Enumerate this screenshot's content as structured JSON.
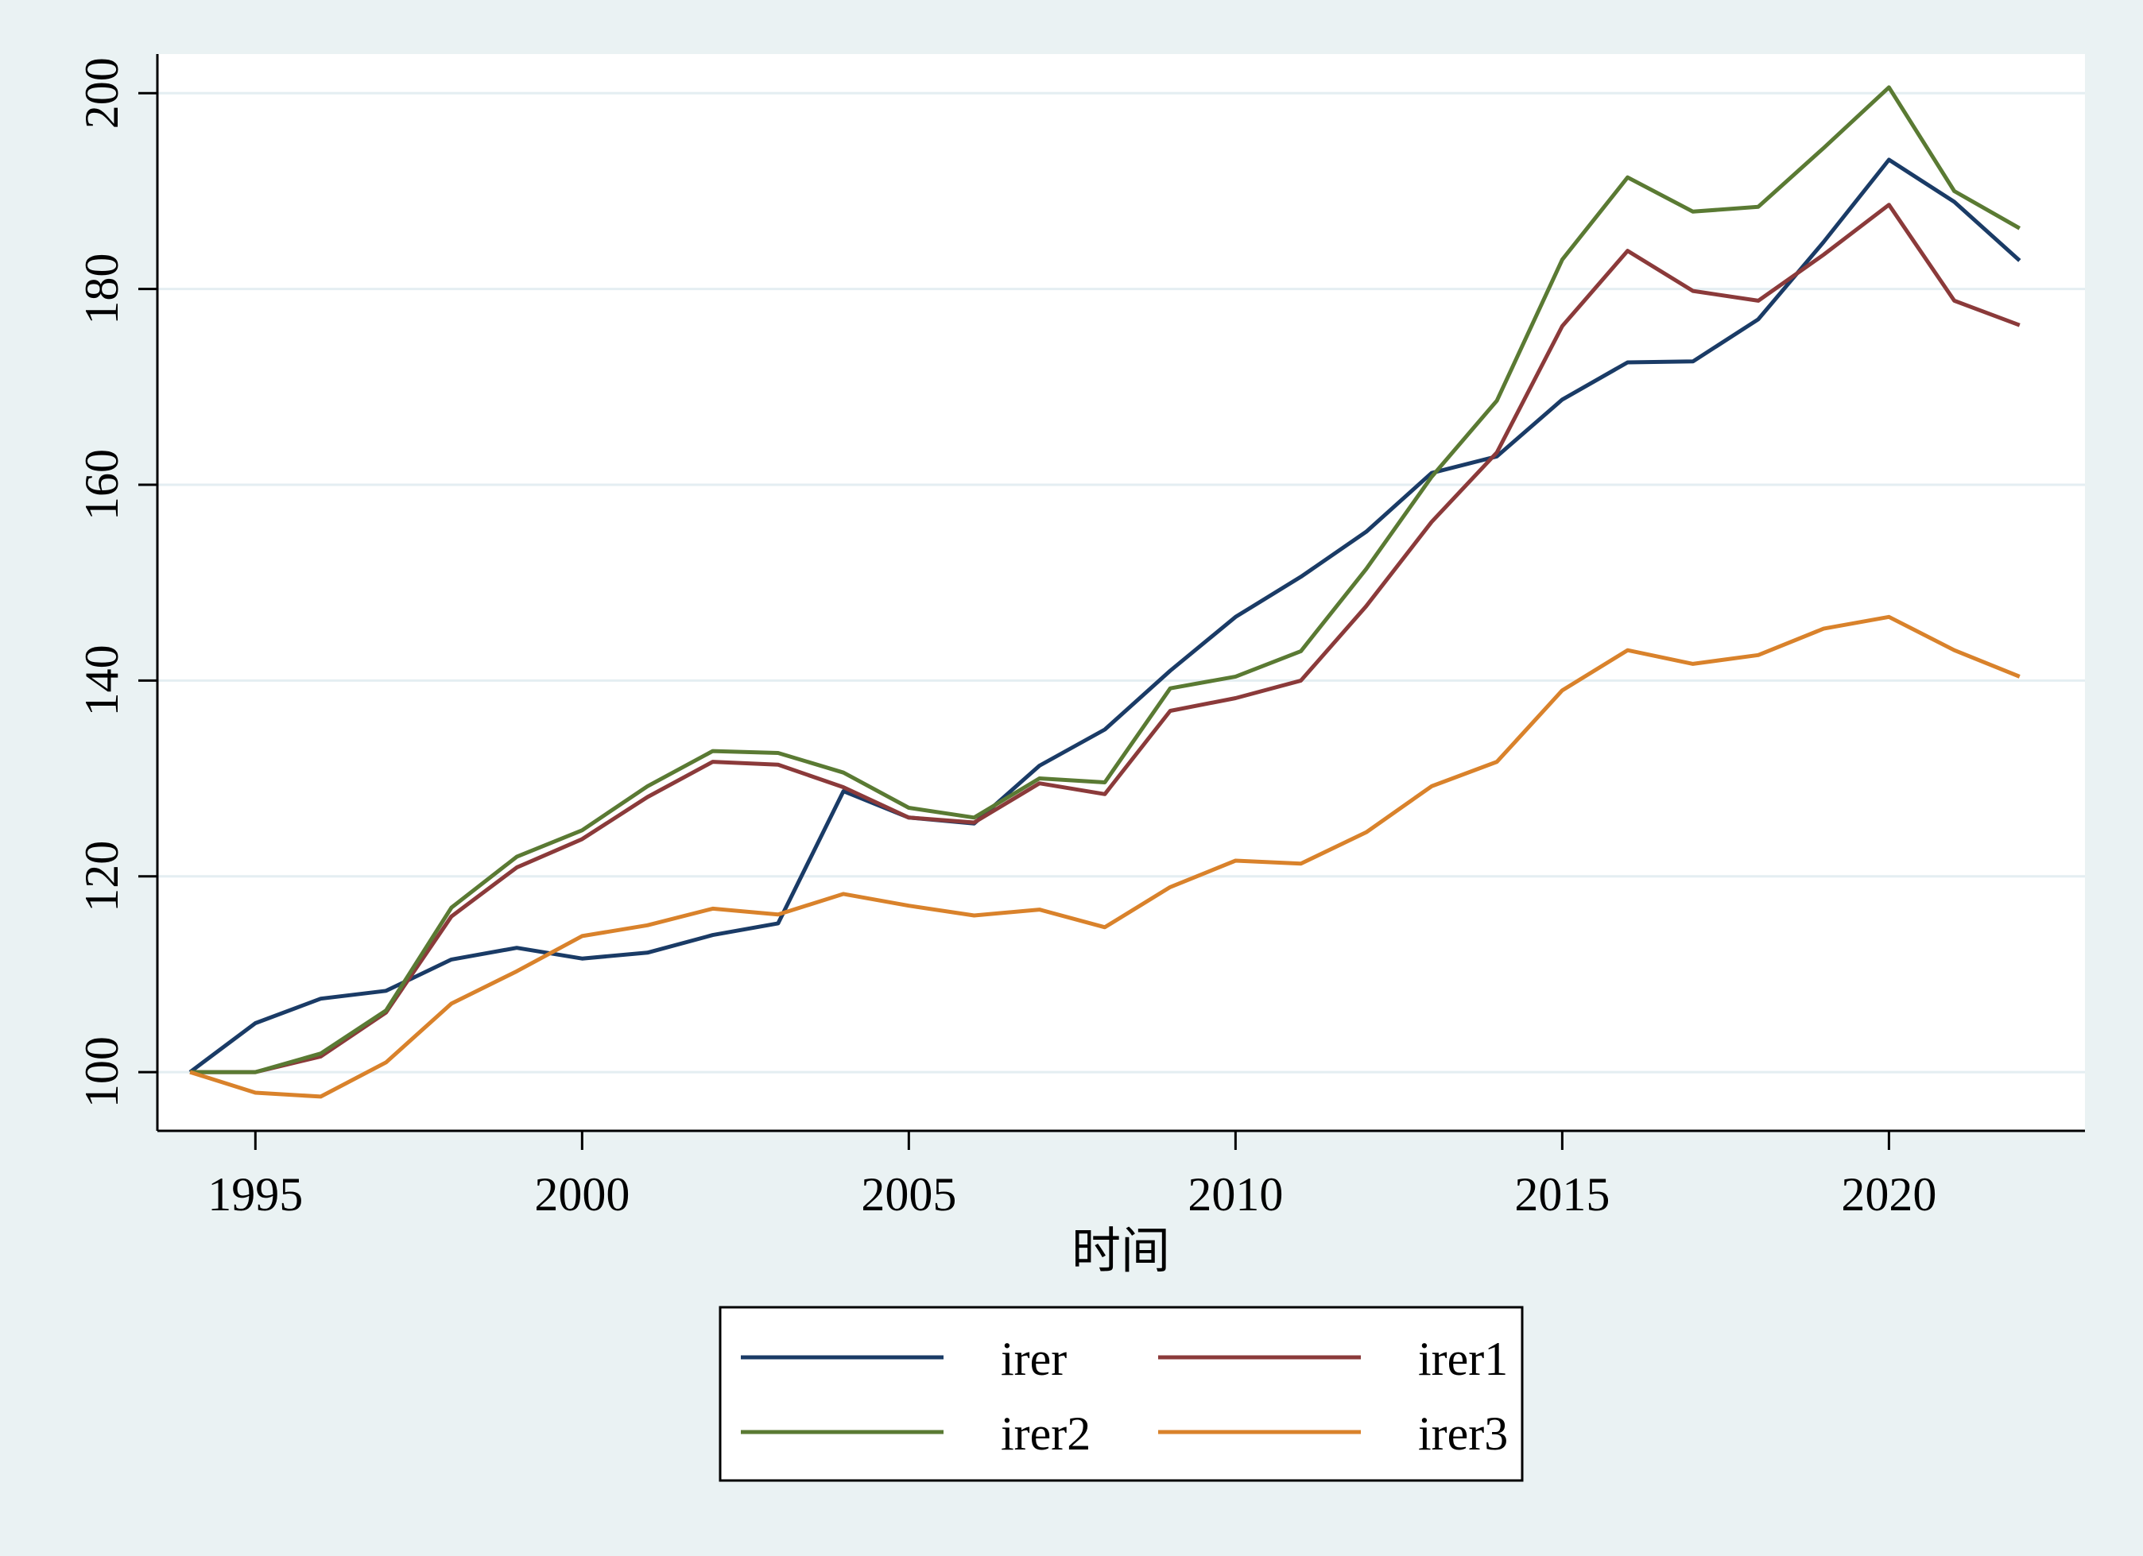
{
  "chart_data": {
    "type": "line",
    "title": "",
    "xlabel": "时间",
    "ylabel": "",
    "xlim": [
      1993.5,
      2023
    ],
    "ylim": [
      94,
      204
    ],
    "x_ticks": [
      1995,
      2000,
      2005,
      2010,
      2015,
      2020
    ],
    "y_ticks": [
      100,
      120,
      140,
      160,
      180,
      200
    ],
    "grid": true,
    "legend_position": "bottom",
    "x": [
      1994,
      1995,
      1996,
      1997,
      1998,
      1999,
      2000,
      2001,
      2002,
      2003,
      2004,
      2005,
      2006,
      2007,
      2008,
      2009,
      2010,
      2011,
      2012,
      2013,
      2014,
      2015,
      2016,
      2017,
      2018,
      2019,
      2020,
      2021,
      2022
    ],
    "series": [
      {
        "name": "irer",
        "color": "#1a3b66",
        "values": [
          100,
          105,
          107.5,
          108.3,
          111.5,
          112.7,
          111.6,
          112.2,
          114,
          115.2,
          128.7,
          126,
          125.4,
          131.3,
          135,
          141,
          146.5,
          150.6,
          155.2,
          161.2,
          162.9,
          168.7,
          172.5,
          172.6,
          176.9,
          184.8,
          193.2,
          188.9,
          182.9
        ]
      },
      {
        "name": "irer1",
        "color": "#8b3a3a",
        "values": [
          100,
          100,
          101.6,
          106.1,
          115.9,
          120.9,
          123.8,
          128.1,
          131.7,
          131.4,
          129.1,
          126,
          125.5,
          129.5,
          128.4,
          136.9,
          138.2,
          140,
          147.6,
          156.2,
          163.3,
          176.2,
          183.9,
          179.8,
          178.8,
          183.5,
          188.6,
          178.8,
          176.3
        ]
      },
      {
        "name": "irer2",
        "color": "#5a7a33",
        "values": [
          100,
          100,
          101.9,
          106.3,
          116.8,
          122,
          124.7,
          129.2,
          132.8,
          132.6,
          130.6,
          127,
          126,
          130,
          129.6,
          139.2,
          140.4,
          143,
          151.4,
          160.8,
          168.6,
          183,
          191.4,
          187.9,
          188.4,
          194.4,
          200.6,
          190,
          186.2
        ]
      },
      {
        "name": "irer3",
        "color": "#d9822b",
        "values": [
          100,
          97.9,
          97.5,
          101,
          107,
          110.3,
          113.9,
          115,
          116.7,
          116.1,
          118.2,
          117,
          116,
          116.6,
          114.8,
          118.9,
          121.6,
          121.3,
          124.5,
          129.2,
          131.7,
          139,
          143.1,
          141.7,
          142.6,
          145.3,
          146.5,
          143.1,
          140.4
        ]
      }
    ]
  }
}
